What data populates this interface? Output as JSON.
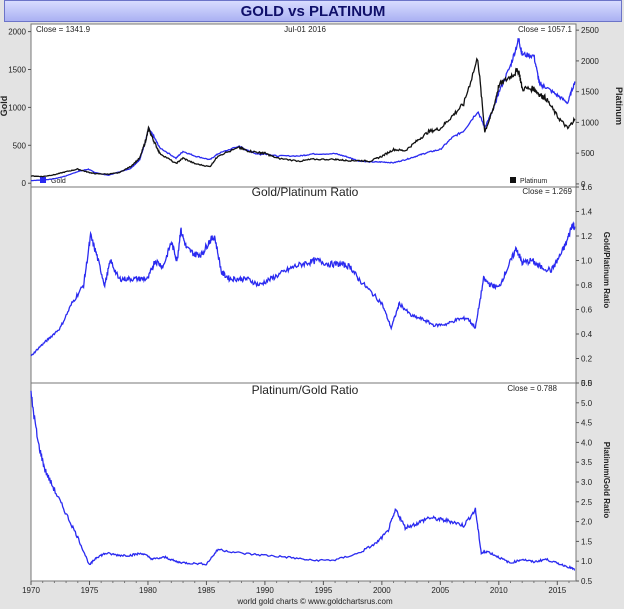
{
  "title": "GOLD vs PLATINUM",
  "footer": "world gold charts © www.goldchartsrus.com",
  "colors": {
    "gold": "#2a2af0",
    "platinum": "#111111",
    "ratio": "#2a2af0",
    "title_bg": "#b7bdf5"
  },
  "chart_data": [
    {
      "type": "line",
      "title": "",
      "top_left_label": "Close = 1341.9",
      "date_label": "Jul-01  2016",
      "top_right_label": "Close = 1057.1",
      "ylabel_left": "Gold",
      "ylabel_right": "Platinum",
      "xlim": [
        1970,
        2016.6
      ],
      "ylim_left": [
        -50,
        2100
      ],
      "ylim_right": [
        -50,
        2600
      ],
      "yticks_left": [
        0,
        500,
        1000,
        1500,
        2000
      ],
      "yticks_right": [
        0,
        500,
        1000,
        1500,
        2000,
        2500
      ],
      "legend": [
        "Gold",
        "Platinum"
      ],
      "legend_placement": "bottom",
      "series": [
        {
          "name": "Gold",
          "axis": "left",
          "x": [
            1970,
            1971,
            1972,
            1973,
            1974,
            1974.9,
            1975.5,
            1976.6,
            1977.5,
            1978.5,
            1979.3,
            1979.8,
            1980.05,
            1980.5,
            1981,
            1982.4,
            1983,
            1984,
            1985.3,
            1986,
            1987.8,
            1988.5,
            1989.5,
            1990,
            1991,
            1993,
            1994,
            1996,
            1997,
            1998,
            1999,
            2000,
            2001,
            2002,
            2003,
            2004,
            2005,
            2006,
            2007,
            2008.2,
            2008.8,
            2009.5,
            2010,
            2011,
            2011.7,
            2012,
            2013,
            2013.5,
            2014,
            2015,
            2015.9,
            2016.5
          ],
          "y": [
            35,
            42,
            58,
            97,
            154,
            185,
            140,
            104,
            148,
            193,
            310,
            560,
            720,
            615,
            470,
            330,
            420,
            360,
            310,
            390,
            490,
            430,
            380,
            390,
            360,
            360,
            385,
            390,
            350,
            295,
            280,
            280,
            270,
            310,
            360,
            410,
            445,
            600,
            690,
            950,
            740,
            960,
            1200,
            1550,
            1900,
            1700,
            1680,
            1300,
            1270,
            1160,
            1060,
            1342
          ]
        },
        {
          "name": "Platinum",
          "axis": "right",
          "x": [
            1970,
            1971,
            1972,
            1973,
            1974,
            1974.9,
            1975.5,
            1976.6,
            1977.5,
            1978.5,
            1979.3,
            1979.8,
            1980.05,
            1980.5,
            1981,
            1982.4,
            1983,
            1984,
            1985.3,
            1986,
            1987.8,
            1988.5,
            1989.5,
            1990,
            1991,
            1993,
            1994,
            1996,
            1997,
            1998,
            1999,
            2000,
            2001,
            2002,
            2003,
            2004,
            2005,
            2006,
            2007,
            2008.2,
            2008.8,
            2009.5,
            2010,
            2011,
            2011.7,
            2012,
            2013,
            2013.5,
            2014,
            2015,
            2015.9,
            2016.5
          ],
          "y": [
            130,
            120,
            150,
            200,
            240,
            190,
            165,
            160,
            180,
            280,
            420,
            700,
            900,
            700,
            500,
            330,
            420,
            330,
            280,
            460,
            590,
            540,
            510,
            500,
            420,
            370,
            400,
            400,
            380,
            380,
            370,
            450,
            560,
            540,
            700,
            850,
            900,
            1100,
            1300,
            2050,
            850,
            1200,
            1600,
            1750,
            1850,
            1550,
            1550,
            1450,
            1400,
            1100,
            900,
            1057
          ]
        }
      ]
    },
    {
      "type": "line",
      "title": "Gold/Platinum Ratio",
      "top_right_label": "Close = 1.269",
      "ylabel_right": "Gold/Platinum Ratio",
      "xlim": [
        1970,
        2016.6
      ],
      "ylim": [
        0,
        1.6
      ],
      "yticks": [
        0.0,
        0.2,
        0.4,
        0.6,
        0.8,
        1.0,
        1.2,
        1.4,
        1.6
      ],
      "series": [
        {
          "name": "",
          "x": [
            1970,
            1970.8,
            1971.5,
            1972.5,
            1973.5,
            1974.5,
            1975.1,
            1975.6,
            1976.3,
            1976.8,
            1977.5,
            1978.3,
            1979.2,
            1980,
            1980.6,
            1981.3,
            1982,
            1982.5,
            1982.8,
            1983.3,
            1984,
            1984.6,
            1985.2,
            1985.7,
            1986.3,
            1987,
            1987.8,
            1988.5,
            1989.5,
            1990.5,
            1991.5,
            1992.5,
            1993.5,
            1994.5,
            1995.5,
            1996.5,
            1997.3,
            1998,
            1999,
            2000,
            2000.8,
            2001.5,
            2002.5,
            2003.5,
            2004.5,
            2005.5,
            2006.5,
            2007.3,
            2008,
            2008.7,
            2009.3,
            2010,
            2010.8,
            2011.5,
            2012,
            2012.8,
            2013.5,
            2014.5,
            2015.3,
            2015.8,
            2016.3,
            2016.5
          ],
          "y": [
            0.22,
            0.3,
            0.36,
            0.45,
            0.65,
            0.8,
            1.2,
            1.05,
            0.8,
            1.0,
            0.85,
            0.85,
            0.85,
            0.85,
            1.0,
            0.95,
            1.15,
            1.0,
            1.25,
            1.1,
            1.05,
            1.05,
            1.15,
            1.2,
            0.9,
            0.85,
            0.85,
            0.85,
            0.8,
            0.85,
            0.9,
            0.95,
            0.98,
            1.0,
            0.97,
            0.97,
            0.95,
            0.85,
            0.75,
            0.65,
            0.45,
            0.65,
            0.55,
            0.52,
            0.47,
            0.48,
            0.52,
            0.53,
            0.45,
            0.85,
            0.8,
            0.78,
            0.95,
            1.1,
            0.98,
            1.0,
            0.95,
            0.92,
            1.05,
            1.15,
            1.3,
            1.27
          ]
        }
      ]
    },
    {
      "type": "line",
      "title": "Platinum/Gold Ratio",
      "top_right_label": "Close = 0.788",
      "ylabel_right": "Platinum/Gold Ratio",
      "xlim": [
        1970,
        2016.6
      ],
      "ylim": [
        0.5,
        5.5
      ],
      "yticks": [
        0.5,
        1.0,
        1.5,
        2.0,
        2.5,
        3.0,
        3.5,
        4.0,
        4.5,
        5.0,
        5.5
      ],
      "xticks": [
        1970,
        1975,
        1980,
        1985,
        1990,
        1995,
        2000,
        2005,
        2010,
        2015
      ],
      "series": [
        {
          "name": "",
          "x": [
            1970,
            1970.6,
            1971.2,
            1972,
            1973,
            1974,
            1975,
            1975.6,
            1976.4,
            1977.5,
            1978.5,
            1979.5,
            1980.4,
            1981.5,
            1982.5,
            1983.5,
            1985,
            1986,
            1988,
            1990,
            1992,
            1994,
            1996,
            1998,
            1999.5,
            2000.5,
            2001.2,
            2002,
            2003,
            2004,
            2005,
            2006,
            2007,
            2008,
            2008.5,
            2009,
            2010,
            2011,
            2012,
            2013,
            2014,
            2015,
            2016,
            2016.5
          ],
          "y": [
            5.2,
            4.0,
            3.3,
            2.8,
            2.2,
            1.6,
            0.9,
            1.1,
            1.2,
            1.15,
            1.15,
            1.2,
            1.05,
            1.1,
            0.98,
            0.95,
            0.93,
            1.3,
            1.2,
            1.15,
            1.1,
            1.02,
            1.03,
            1.2,
            1.45,
            1.75,
            2.3,
            1.85,
            1.95,
            2.1,
            2.05,
            2.0,
            1.9,
            2.3,
            1.2,
            1.25,
            1.1,
            0.95,
            1.05,
            0.98,
            1.05,
            0.95,
            0.85,
            0.79
          ]
        }
      ]
    }
  ]
}
